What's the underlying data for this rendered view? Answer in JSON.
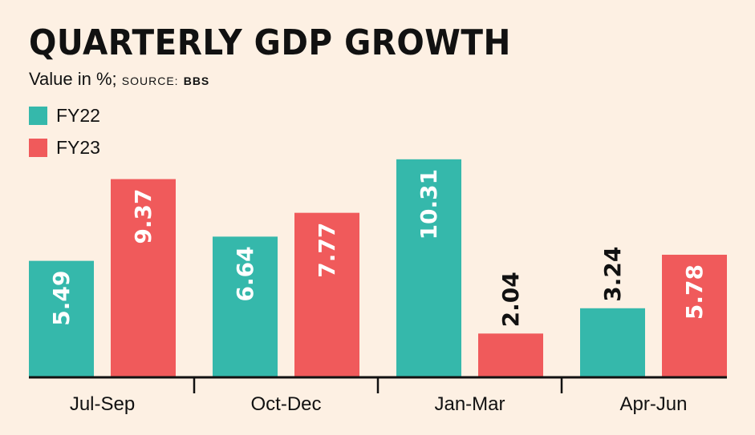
{
  "chart_data": {
    "type": "bar",
    "title": "QUARTERLY GDP GROWTH",
    "subtitle": "Value in %;",
    "source_label": "SOURCE:",
    "source": "BBS",
    "xlabel": "",
    "ylabel": "",
    "ylim": [
      0,
      10.5
    ],
    "grid": false,
    "legend": "top-left",
    "categories": [
      "Jul-Sep",
      "Oct-Dec",
      "Jan-Mar",
      "Apr-Jun"
    ],
    "series": [
      {
        "name": "FY22",
        "color": "#35b8ab",
        "values": [
          5.49,
          6.64,
          10.31,
          3.24
        ],
        "labels": [
          "5.49",
          "6.64",
          "10.31",
          "3.24"
        ]
      },
      {
        "name": "FY23",
        "color": "#f05a5b",
        "values": [
          9.37,
          7.77,
          2.04,
          5.78
        ],
        "labels": [
          "9.37",
          "7.77",
          "2.04",
          "5.78"
        ]
      }
    ]
  }
}
